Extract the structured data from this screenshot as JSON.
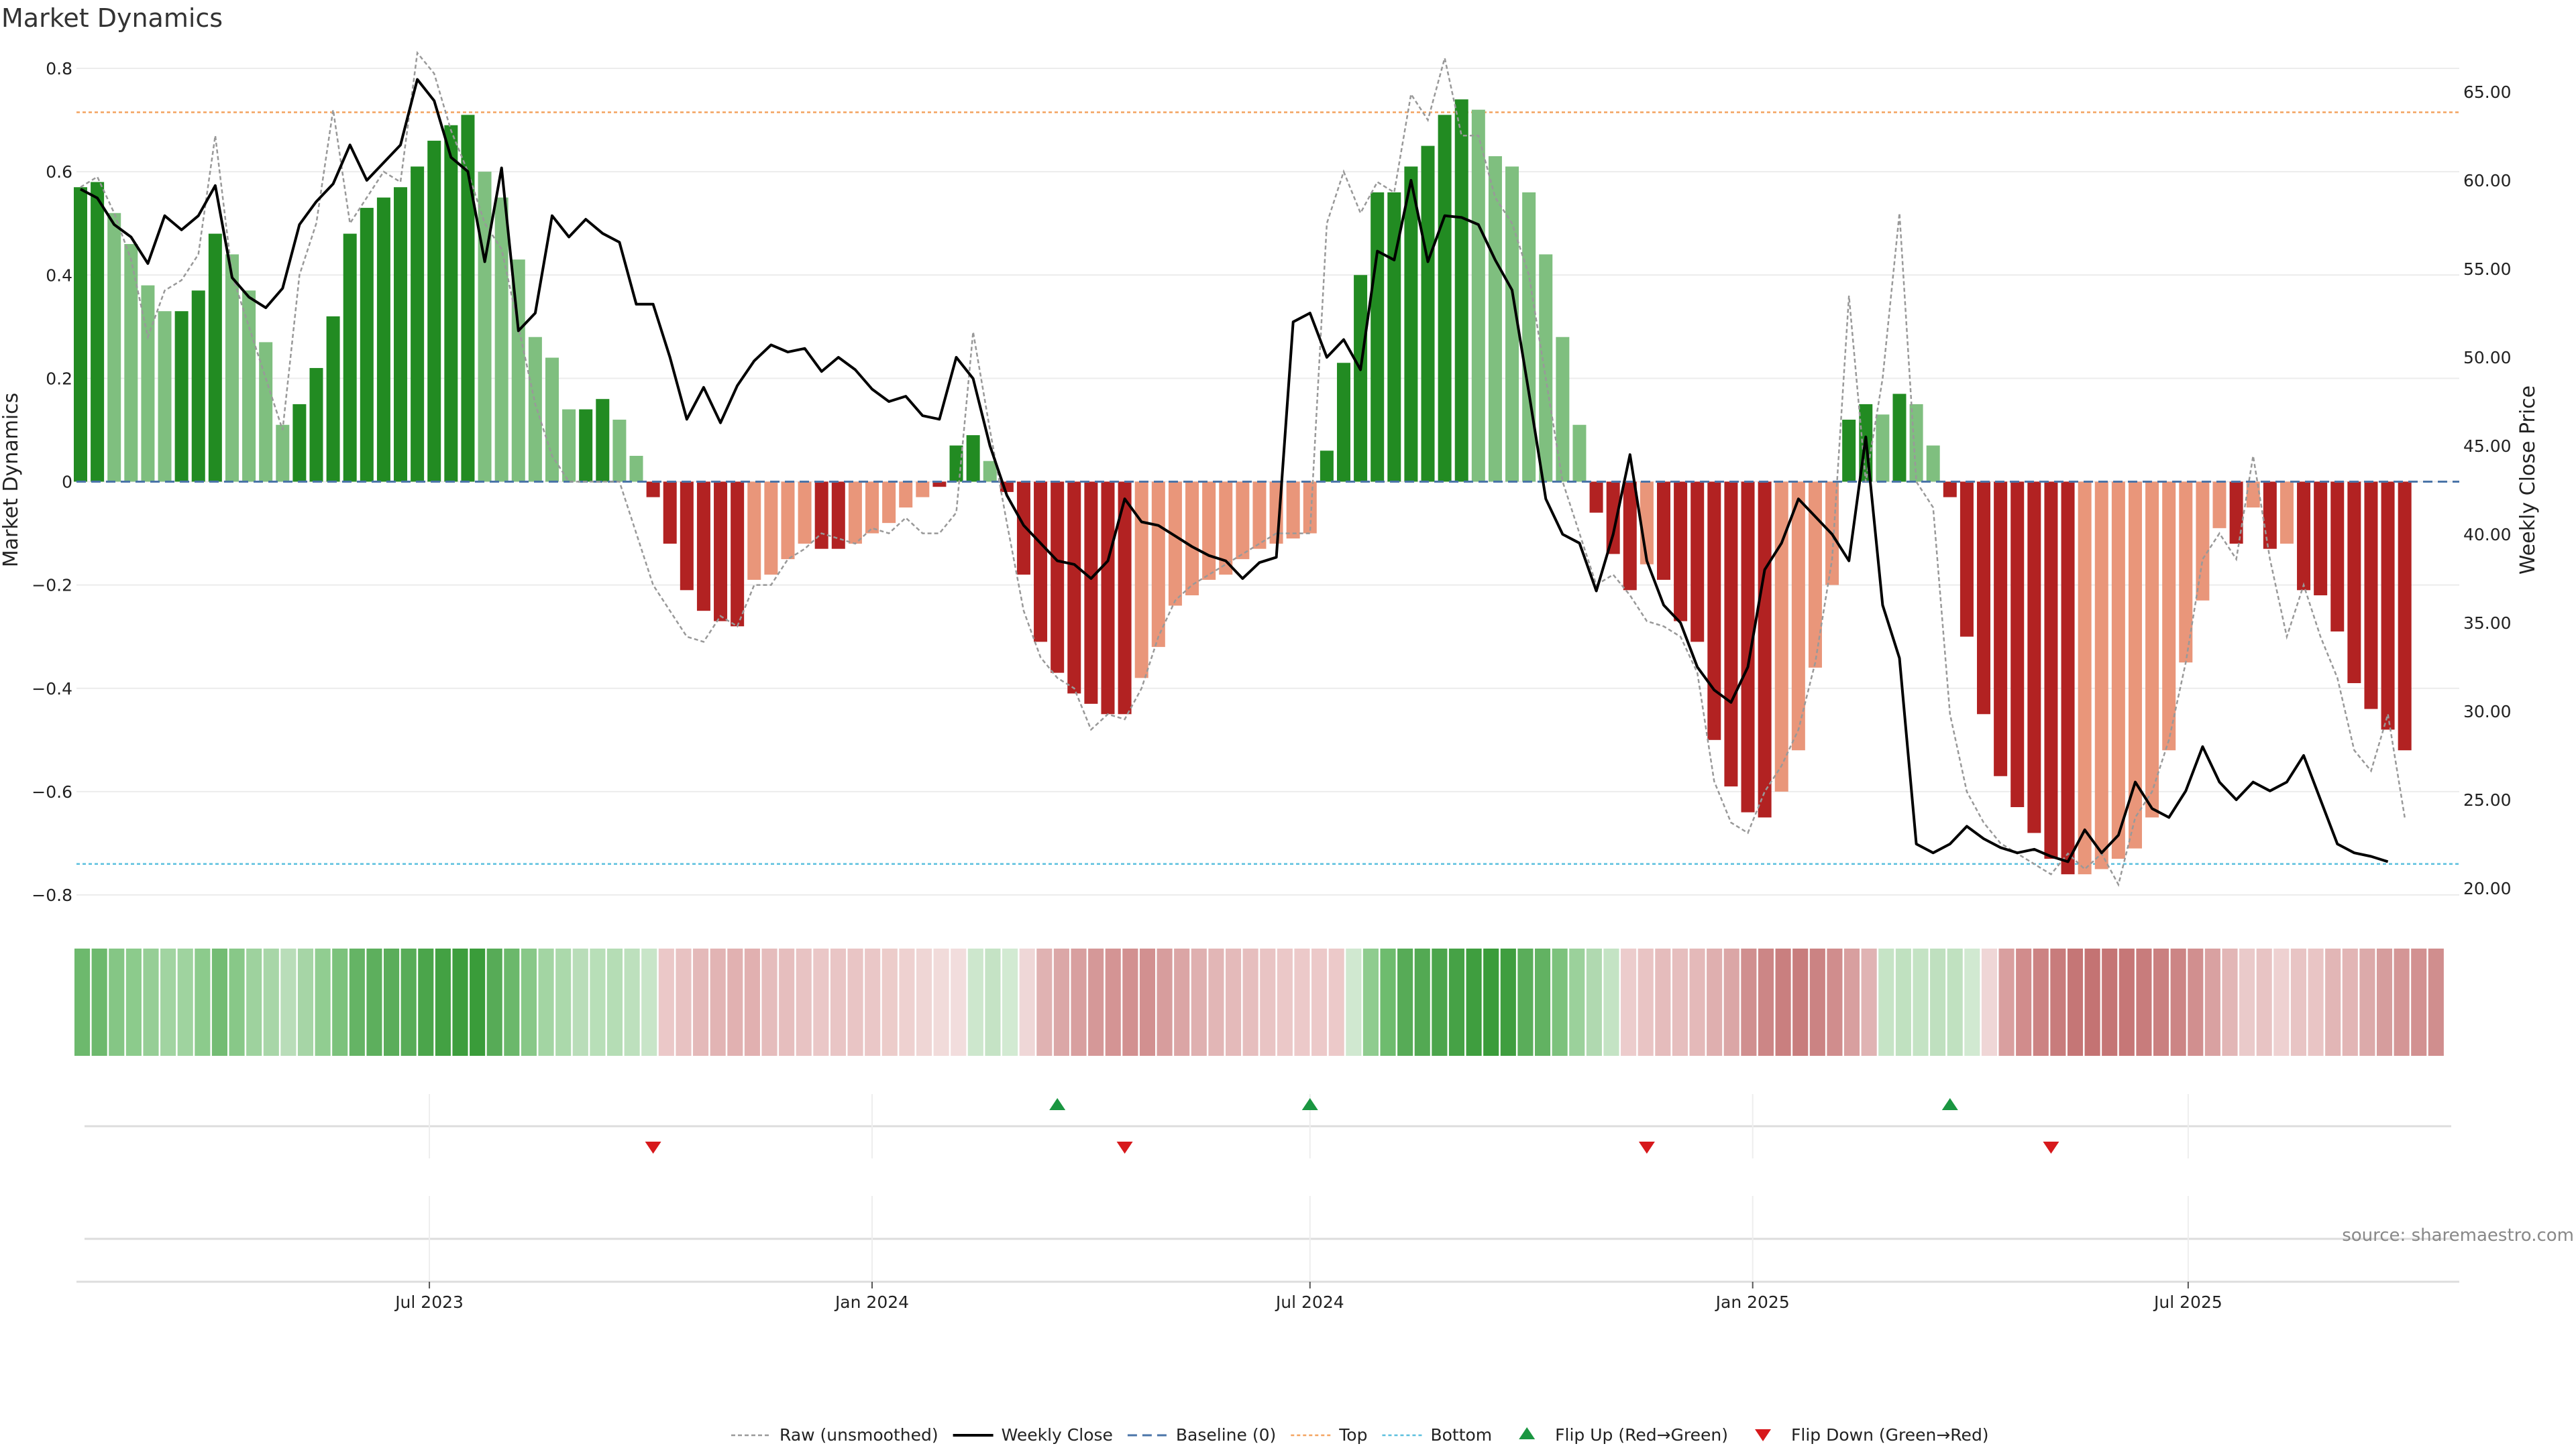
{
  "chart_data": {
    "type": "bar",
    "title": "Market Dynamics",
    "ylabel_left": "Market Dynamics",
    "ylabel_right": "Weekly Close Price",
    "ylim_left": [
      -0.8,
      0.8
    ],
    "ylim_right": [
      20,
      65
    ],
    "yticks_left": [
      -0.8,
      -0.6,
      -0.4,
      -0.2,
      0,
      0.2,
      0.4,
      0.6,
      0.8
    ],
    "ytick_labels_left": [
      "−0.8",
      "−0.6",
      "−0.4",
      "−0.2",
      "0",
      "0.2",
      "0.4",
      "0.6",
      "0.8"
    ],
    "yticks_right": [
      20,
      25,
      30,
      35,
      40,
      45,
      50,
      55,
      60,
      65
    ],
    "ytick_labels_right": [
      "20.00",
      "25.00",
      "30.00",
      "35.00",
      "40.00",
      "45.00",
      "50.00",
      "55.00",
      "60.00",
      "65.00"
    ],
    "x_start": "2023-02-06",
    "x_end": "2025-10-20",
    "x_step_days": 7,
    "xticks": [
      {
        "date": "2023-07-01",
        "label": "Jul 2023"
      },
      {
        "date": "2024-01-01",
        "label": "Jan 2024"
      },
      {
        "date": "2024-07-01",
        "label": "Jul 2024"
      },
      {
        "date": "2025-01-01",
        "label": "Jan 2025"
      },
      {
        "date": "2025-07-01",
        "label": "Jul 2025"
      }
    ],
    "top_level": 0.715,
    "bottom_level": -0.74,
    "baseline": 0,
    "grid": true,
    "legend_position": "bottom",
    "colors": {
      "strong_up": "#228b22",
      "weak_up": "#7fbf7f",
      "strong_down": "#b22222",
      "weak_down": "#e9967a",
      "raw_line": "#999999",
      "close_line": "#000000",
      "baseline": "#4a74a8",
      "top": "#f4a460",
      "bottom": "#5bc0de",
      "flip_up": "#1a9641",
      "flip_down": "#d7191c"
    },
    "series": [
      {
        "name": "Market Dynamics",
        "values": [
          0.57,
          0.58,
          0.52,
          0.46,
          0.38,
          0.33,
          0.33,
          0.37,
          0.48,
          0.44,
          0.37,
          0.27,
          0.11,
          0.15,
          0.22,
          0.32,
          0.48,
          0.53,
          0.55,
          0.57,
          0.61,
          0.66,
          0.69,
          0.71,
          0.6,
          0.55,
          0.43,
          0.28,
          0.24,
          0.14,
          0.14,
          0.16,
          0.12,
          0.05,
          -0.03,
          -0.12,
          -0.21,
          -0.25,
          -0.27,
          -0.28,
          -0.19,
          -0.18,
          -0.15,
          -0.12,
          -0.13,
          -0.13,
          -0.12,
          -0.1,
          -0.08,
          -0.05,
          -0.03,
          -0.01,
          0.07,
          0.09,
          0.04,
          -0.02,
          -0.18,
          -0.31,
          -0.37,
          -0.41,
          -0.43,
          -0.45,
          -0.45,
          -0.38,
          -0.32,
          -0.24,
          -0.22,
          -0.19,
          -0.18,
          -0.15,
          -0.13,
          -0.12,
          -0.11,
          -0.1,
          0.06,
          0.23,
          0.4,
          0.56,
          0.56,
          0.61,
          0.65,
          0.71,
          0.74,
          0.72,
          0.63,
          0.61,
          0.56,
          0.44,
          0.28,
          0.11,
          -0.06,
          -0.14,
          -0.21,
          -0.16,
          -0.19,
          -0.27,
          -0.31,
          -0.5,
          -0.59,
          -0.64,
          -0.65,
          -0.6,
          -0.52,
          -0.36,
          -0.2,
          0.12,
          0.15,
          0.13,
          0.17,
          0.15,
          0.07,
          -0.03,
          -0.3,
          -0.45,
          -0.57,
          -0.63,
          -0.68,
          -0.73,
          -0.76,
          -0.76,
          -0.75,
          -0.73,
          -0.71,
          -0.65,
          -0.52,
          -0.35,
          -0.23,
          -0.09,
          -0.12,
          -0.05,
          -0.13,
          -0.12,
          -0.21,
          -0.22,
          -0.29,
          -0.39,
          -0.44,
          -0.48,
          -0.52
        ],
        "colors": [
          "strong_up",
          "strong_up",
          "weak_up",
          "weak_up",
          "weak_up",
          "weak_up",
          "strong_up",
          "strong_up",
          "strong_up",
          "weak_up",
          "weak_up",
          "weak_up",
          "weak_up",
          "strong_up",
          "strong_up",
          "strong_up",
          "strong_up",
          "strong_up",
          "strong_up",
          "strong_up",
          "strong_up",
          "strong_up",
          "strong_up",
          "strong_up",
          "weak_up",
          "weak_up",
          "weak_up",
          "weak_up",
          "weak_up",
          "weak_up",
          "strong_up",
          "strong_up",
          "weak_up",
          "weak_up",
          "strong_down",
          "strong_down",
          "strong_down",
          "strong_down",
          "strong_down",
          "strong_down",
          "weak_down",
          "weak_down",
          "weak_down",
          "weak_down",
          "strong_down",
          "strong_down",
          "weak_down",
          "weak_down",
          "weak_down",
          "weak_down",
          "weak_down",
          "strong_down",
          "strong_up",
          "strong_up",
          "weak_up",
          "strong_down",
          "strong_down",
          "strong_down",
          "strong_down",
          "strong_down",
          "strong_down",
          "strong_down",
          "strong_down",
          "weak_down",
          "weak_down",
          "weak_down",
          "weak_down",
          "weak_down",
          "weak_down",
          "weak_down",
          "weak_down",
          "weak_down",
          "weak_down",
          "weak_down",
          "strong_up",
          "strong_up",
          "strong_up",
          "strong_up",
          "strong_up",
          "strong_up",
          "strong_up",
          "strong_up",
          "strong_up",
          "weak_up",
          "weak_up",
          "weak_up",
          "weak_up",
          "weak_up",
          "weak_up",
          "weak_up",
          "strong_down",
          "strong_down",
          "strong_down",
          "weak_down",
          "strong_down",
          "strong_down",
          "strong_down",
          "strong_down",
          "strong_down",
          "strong_down",
          "strong_down",
          "weak_down",
          "weak_down",
          "weak_down",
          "weak_down",
          "strong_up",
          "strong_up",
          "weak_up",
          "strong_up",
          "weak_up",
          "weak_up",
          "strong_down",
          "strong_down",
          "strong_down",
          "strong_down",
          "strong_down",
          "strong_down",
          "strong_down",
          "strong_down",
          "weak_down",
          "weak_down",
          "weak_down",
          "weak_down",
          "weak_down",
          "weak_down",
          "weak_down",
          "weak_down",
          "weak_down",
          "strong_down",
          "weak_down",
          "strong_down",
          "weak_down",
          "strong_down",
          "strong_down",
          "strong_down",
          "strong_down",
          "strong_down",
          "strong_down",
          "strong_down"
        ]
      },
      {
        "name": "Raw (unsmoothed)",
        "values": [
          0.57,
          0.59,
          0.52,
          0.43,
          0.28,
          0.37,
          0.39,
          0.44,
          0.67,
          0.4,
          0.3,
          0.2,
          0.1,
          0.4,
          0.5,
          0.72,
          0.5,
          0.55,
          0.6,
          0.58,
          0.83,
          0.79,
          0.68,
          0.6,
          0.5,
          0.45,
          0.3,
          0.15,
          0.05,
          0.0,
          0.0,
          0.0,
          0.0,
          -0.1,
          -0.2,
          -0.25,
          -0.3,
          -0.31,
          -0.26,
          -0.28,
          -0.2,
          -0.2,
          -0.15,
          -0.13,
          -0.1,
          -0.11,
          -0.12,
          -0.09,
          -0.1,
          -0.07,
          -0.1,
          -0.1,
          -0.06,
          0.29,
          0.1,
          -0.08,
          -0.25,
          -0.34,
          -0.38,
          -0.4,
          -0.48,
          -0.45,
          -0.46,
          -0.4,
          -0.3,
          -0.23,
          -0.2,
          -0.18,
          -0.16,
          -0.14,
          -0.12,
          -0.1,
          -0.1,
          -0.1,
          0.5,
          0.6,
          0.52,
          0.58,
          0.56,
          0.75,
          0.7,
          0.82,
          0.67,
          0.67,
          0.55,
          0.5,
          0.4,
          0.2,
          0.0,
          -0.1,
          -0.2,
          -0.18,
          -0.22,
          -0.27,
          -0.28,
          -0.3,
          -0.37,
          -0.58,
          -0.66,
          -0.68,
          -0.6,
          -0.55,
          -0.48,
          -0.35,
          -0.15,
          0.36,
          0.0,
          0.2,
          0.52,
          0.0,
          -0.05,
          -0.45,
          -0.6,
          -0.66,
          -0.7,
          -0.72,
          -0.74,
          -0.76,
          -0.72,
          -0.75,
          -0.72,
          -0.78,
          -0.65,
          -0.6,
          -0.5,
          -0.35,
          -0.15,
          -0.1,
          -0.15,
          0.05,
          -0.15,
          -0.3,
          -0.2,
          -0.3,
          -0.38,
          -0.52,
          -0.56,
          -0.45,
          -0.65
        ]
      },
      {
        "name": "Weekly Close",
        "values": [
          59.5,
          59.0,
          57.5,
          56.8,
          55.3,
          58.0,
          57.2,
          58.0,
          59.7,
          54.5,
          53.4,
          52.8,
          53.9,
          57.5,
          58.8,
          59.8,
          62.0,
          60.0,
          61.0,
          62.0,
          65.7,
          64.5,
          61.3,
          60.5,
          55.4,
          60.7,
          51.5,
          52.5,
          58.0,
          56.8,
          57.8,
          57.0,
          56.5,
          53.0,
          53.0,
          50.0,
          46.5,
          48.3,
          46.3,
          48.4,
          49.8,
          50.7,
          50.3,
          50.5,
          49.2,
          50.0,
          49.3,
          48.2,
          47.5,
          47.8,
          46.7,
          46.5,
          50.0,
          48.8,
          45.0,
          42.2,
          40.5,
          39.5,
          38.5,
          38.3,
          37.5,
          38.5,
          42.0,
          40.7,
          40.5,
          39.9,
          39.3,
          38.8,
          38.5,
          37.5,
          38.4,
          38.7,
          52.0,
          52.5,
          50.0,
          51.0,
          49.3,
          56.0,
          55.5,
          60.0,
          55.4,
          58.0,
          57.9,
          57.5,
          55.5,
          53.8,
          48.0,
          42.0,
          40.0,
          39.5,
          36.8,
          40.0,
          44.5,
          38.5,
          36.0,
          35.0,
          32.5,
          31.2,
          30.5,
          32.5,
          38.0,
          39.5,
          42.0,
          41.0,
          40.0,
          38.5,
          45.5,
          36.0,
          33.0,
          22.5,
          22.0,
          22.5,
          23.5,
          22.8,
          22.3,
          22.0,
          22.2,
          21.8,
          21.5,
          23.3,
          22.0,
          23.0,
          26.0,
          24.5,
          24.0,
          25.5,
          28.0,
          26.0,
          25.0,
          26.0,
          25.5,
          26.0,
          27.5,
          25.0,
          22.5,
          22.0,
          21.8,
          21.5
        ]
      },
      {
        "name": "Baseline (0)"
      },
      {
        "name": "Top"
      },
      {
        "name": "Bottom"
      },
      {
        "name": "Flip Up (Red→Green)",
        "dates": [
          "2024-03-18",
          "2024-07-01",
          "2025-03-24"
        ]
      },
      {
        "name": "Flip Down (Green→Red)",
        "dates": [
          "2023-10-02",
          "2024-04-15",
          "2024-11-18",
          "2025-05-05"
        ]
      }
    ],
    "heat_strip": {
      "colors": [
        "#6db96d",
        "#6db96d",
        "#85c685",
        "#8ccb8c",
        "#96ce96",
        "#a1d4a1",
        "#9fd39f",
        "#8ccb8c",
        "#73bc73",
        "#88c888",
        "#9ed29e",
        "#a8d6a8",
        "#b9ddb9",
        "#a6d5a6",
        "#91cd91",
        "#7cc27c",
        "#65b465",
        "#5daf5d",
        "#5aad5a",
        "#58ac58",
        "#4ba54b",
        "#43a143",
        "#3d9e3d",
        "#3a9c3a",
        "#57ab57",
        "#6bb86b",
        "#88c888",
        "#a3d5a3",
        "#abd9ab",
        "#b9ddb9",
        "#b8dfb8",
        "#b5ddb5",
        "#bde0bd",
        "#c8e5c8",
        "#ebc8c8",
        "#e8c2c2",
        "#e4b9b9",
        "#e2b4b4",
        "#e1b1b1",
        "#e1b0b0",
        "#e5bcbc",
        "#e6bebe",
        "#e8c3c3",
        "#eac7c7",
        "#e9c5c5",
        "#e9c5c5",
        "#eac7c7",
        "#ecccca",
        "#eed1d0",
        "#efd6d5",
        "#f1dbda",
        "#f2dddd",
        "#cde7cd",
        "#c5e3c5",
        "#d2ead2",
        "#efd7d7",
        "#e0b2b2",
        "#dba7a7",
        "#d89f9f",
        "#d59898",
        "#d49494",
        "#d29090",
        "#d29090",
        "#d79d9d",
        "#dba5a5",
        "#dfb0b0",
        "#e2b6b6",
        "#e4baba",
        "#e6bebe",
        "#e9c4c4",
        "#ebc8c8",
        "#ecc9c9",
        "#ecc9c9",
        "#ecc9c9",
        "#d0e8d0",
        "#8fcc8f",
        "#6ebc6e",
        "#57ab57",
        "#53a953",
        "#4ca54c",
        "#46a246",
        "#3f9e3f",
        "#3a9c3a",
        "#3f9e3f",
        "#5aad5a",
        "#62b262",
        "#7dc27d",
        "#9bd19b",
        "#b0d9b0",
        "#c4e3c4",
        "#eccccc",
        "#e9c4c4",
        "#e5bcbc",
        "#e6bebe",
        "#e4b9b9",
        "#dfafaf",
        "#dba6a6",
        "#d08f8f",
        "#cc8686",
        "#c97f7f",
        "#c87d7d",
        "#cb8383",
        "#d08d8d",
        "#d89f9f",
        "#e0b3b3",
        "#c6e4c6",
        "#c0e1c0",
        "#c4e3c4",
        "#bfe0bf",
        "#c0e1c0",
        "#d1e9d1",
        "#efd6d6",
        "#d99f9f",
        "#d18c8c",
        "#cc8383",
        "#c87c7c",
        "#c57676",
        "#c47373",
        "#c57575",
        "#c67777",
        "#c87c7c",
        "#ca8080",
        "#cc8585",
        "#d18f8f",
        "#d9a1a1",
        "#e2b6b6",
        "#eacaca",
        "#e8c4c4",
        "#eed1d1",
        "#e8c4c4",
        "#e9c5c5",
        "#e2b6b6",
        "#e2b5b5",
        "#dcaaaa",
        "#d69d9d",
        "#d49696",
        "#d29191",
        "#d08e8e"
      ]
    },
    "source": "source: sharemaestro.com"
  }
}
